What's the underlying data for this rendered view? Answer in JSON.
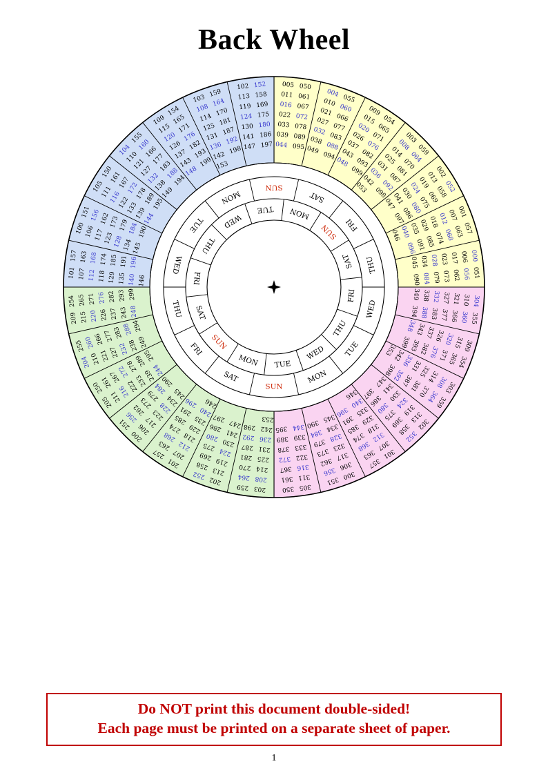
{
  "page": {
    "title": "Back Wheel",
    "page_number": "1",
    "warning": {
      "line1": "Do NOT print this document double-sided!",
      "line2": "Each page must be printed on a separate sheet of paper."
    }
  },
  "colors": {
    "century0_fill": "#ffffc9",
    "century1_fill": "#cfdef6",
    "century2_fill": "#daf2cd",
    "century3_fill": "#fad4f1",
    "leap_year_text": "#3333cc",
    "common_year_text": "#000000",
    "sunday_text": "#cc2200",
    "day_text": "#000000",
    "warning_text": "#c00000",
    "warning_border": "#c00000"
  },
  "wheel": {
    "center_marker_icon": "four-pointed-star",
    "day_ring_outer_clockwise_from_top": [
      "SUN",
      "SAT",
      "FRI",
      "THU",
      "WED",
      "TUE",
      "MON",
      "SUN",
      "SAT",
      "FRI",
      "THU",
      "WED",
      "TUE",
      "MON"
    ],
    "day_ring_inner_clockwise": [
      "SUN",
      "SAT",
      "FRI",
      "THU",
      "WED",
      "TUE",
      "MON",
      "SUN",
      "SAT",
      "FRI",
      "THU",
      "WED",
      "TUE",
      "MON"
    ],
    "day_ring_inner_offset_deg": 45,
    "sectors_clockwise_from_top": [
      {
        "century": 0,
        "col1": [
          "005",
          "011",
          "016",
          "022",
          "033",
          "039",
          "044"
        ],
        "col2": [
          "050",
          "061",
          "067",
          "072",
          "078",
          "089",
          "095"
        ]
      },
      {
        "century": 0,
        "col1": [
          "004",
          "010",
          "021",
          "027",
          "032",
          "038",
          "049"
        ],
        "col2": [
          "055",
          "060",
          "066",
          "077",
          "083",
          "088",
          "094"
        ]
      },
      {
        "century": 0,
        "col1": [
          "009",
          "015",
          "020",
          "026",
          "037",
          "043",
          "048"
        ],
        "col2": [
          "054",
          "065",
          "071",
          "076",
          "082",
          "093",
          "099"
        ]
      },
      {
        "century": 0,
        "col1": [
          "003",
          "008",
          "014",
          "025",
          "031",
          "036",
          "042",
          "053"
        ],
        "col2": [
          "059",
          "064",
          "070",
          "081",
          "087",
          "092",
          "098"
        ]
      },
      {
        "century": 0,
        "col1": [
          "002",
          "013",
          "019",
          "024",
          "030",
          "041",
          "047"
        ],
        "col2": [
          "052",
          "058",
          "069",
          "075",
          "080",
          "086",
          "097"
        ]
      },
      {
        "century": 0,
        "col1": [
          "001",
          "007",
          "012",
          "018",
          "029",
          "035",
          "040",
          "046"
        ],
        "col2": [
          "057",
          "063",
          "068",
          "074",
          "085",
          "091",
          "096"
        ]
      },
      {
        "century": 0,
        "col1": [
          "000",
          "006",
          "017",
          "023",
          "028",
          "034",
          "045"
        ],
        "col2": [
          "051",
          "056",
          "062",
          "073",
          "079",
          "084",
          "090"
        ]
      },
      {
        "century": 3,
        "col1": [
          "304",
          "310",
          "321",
          "327",
          "332",
          "338",
          "349"
        ],
        "col2": [
          "355",
          "360",
          "366",
          "377",
          "383",
          "388",
          "394"
        ]
      },
      {
        "century": 3,
        "col1": [
          "309",
          "315",
          "320",
          "326",
          "337",
          "343",
          "348"
        ],
        "col2": [
          "354",
          "365",
          "371",
          "376",
          "382",
          "393",
          "399"
        ]
      },
      {
        "century": 3,
        "col1": [
          "303",
          "308",
          "314",
          "325",
          "331",
          "336",
          "342",
          "353"
        ],
        "col2": [
          "359",
          "364",
          "370",
          "381",
          "387",
          "392",
          "398"
        ]
      },
      {
        "century": 3,
        "col1": [
          "302",
          "313",
          "319",
          "324",
          "330",
          "341",
          "347"
        ],
        "col2": [
          "352",
          "358",
          "369",
          "375",
          "380",
          "386",
          "397"
        ]
      },
      {
        "century": 3,
        "col1": [
          "301",
          "307",
          "312",
          "318",
          "329",
          "335",
          "340",
          "346"
        ],
        "col2": [
          "357",
          "363",
          "368",
          "374",
          "385",
          "391",
          "396"
        ]
      },
      {
        "century": 3,
        "col1": [
          "300",
          "306",
          "317",
          "323",
          "328",
          "334",
          "345"
        ],
        "col2": [
          "351",
          "356",
          "362",
          "373",
          "379",
          "384",
          "390"
        ]
      },
      {
        "century": 3,
        "col1": [
          "305",
          "311",
          "316",
          "322",
          "333",
          "339",
          "344"
        ],
        "col2": [
          "350",
          "361",
          "367",
          "372",
          "378",
          "389",
          "395"
        ]
      },
      {
        "century": 2,
        "col1": [
          "203",
          "208",
          "214",
          "225",
          "231",
          "236",
          "242",
          "253"
        ],
        "col2": [
          "259",
          "264",
          "270",
          "281",
          "287",
          "292",
          "298"
        ]
      },
      {
        "century": 2,
        "col1": [
          "202",
          "213",
          "219",
          "224",
          "230",
          "241",
          "247"
        ],
        "col2": [
          "252",
          "258",
          "269",
          "275",
          "280",
          "286",
          "297"
        ]
      },
      {
        "century": 2,
        "col1": [
          "201",
          "207",
          "212",
          "218",
          "229",
          "235",
          "240",
          "246"
        ],
        "col2": [
          "257",
          "263",
          "268",
          "274",
          "285",
          "291",
          "296"
        ]
      },
      {
        "century": 2,
        "col1": [
          "200",
          "206",
          "217",
          "223",
          "228",
          "234",
          "245"
        ],
        "col2": [
          "251",
          "256",
          "262",
          "273",
          "279",
          "284",
          "290"
        ]
      },
      {
        "century": 2,
        "col1": [
          "205",
          "211",
          "216",
          "222",
          "233",
          "239",
          "244"
        ],
        "col2": [
          "250",
          "261",
          "267",
          "272",
          "278",
          "289",
          "295"
        ]
      },
      {
        "century": 2,
        "col1": [
          "204",
          "210",
          "221",
          "227",
          "232",
          "238",
          "249"
        ],
        "col2": [
          "255",
          "260",
          "266",
          "277",
          "283",
          "288",
          "294"
        ]
      },
      {
        "century": 2,
        "col1": [
          "209",
          "215",
          "220",
          "226",
          "237",
          "243",
          "248"
        ],
        "col2": [
          "254",
          "265",
          "271",
          "276",
          "282",
          "293",
          "299"
        ]
      },
      {
        "century": 1,
        "col1": [
          "101",
          "107",
          "112",
          "118",
          "129",
          "135",
          "140",
          "146"
        ],
        "col2": [
          "157",
          "163",
          "168",
          "174",
          "185",
          "191",
          "196"
        ]
      },
      {
        "century": 1,
        "col1": [
          "100",
          "106",
          "117",
          "123",
          "128",
          "134",
          "145"
        ],
        "col2": [
          "151",
          "156",
          "162",
          "173",
          "179",
          "184",
          "190"
        ]
      },
      {
        "century": 1,
        "col1": [
          "105",
          "111",
          "116",
          "122",
          "133",
          "139",
          "144"
        ],
        "col2": [
          "150",
          "161",
          "167",
          "172",
          "178",
          "189",
          "195"
        ]
      },
      {
        "century": 1,
        "col1": [
          "104",
          "110",
          "121",
          "127",
          "132",
          "138",
          "149"
        ],
        "col2": [
          "155",
          "160",
          "166",
          "177",
          "183",
          "188",
          "194"
        ]
      },
      {
        "century": 1,
        "col1": [
          "109",
          "115",
          "120",
          "126",
          "137",
          "143",
          "148"
        ],
        "col2": [
          "154",
          "165",
          "171",
          "176",
          "182",
          "193",
          "199"
        ]
      },
      {
        "century": 1,
        "col1": [
          "103",
          "108",
          "114",
          "125",
          "131",
          "136",
          "142",
          "153"
        ],
        "col2": [
          "159",
          "164",
          "170",
          "181",
          "187",
          "192",
          "198"
        ]
      },
      {
        "century": 1,
        "col1": [
          "102",
          "113",
          "119",
          "124",
          "130",
          "141",
          "147"
        ],
        "col2": [
          "152",
          "158",
          "169",
          "175",
          "180",
          "186",
          "197"
        ]
      }
    ]
  }
}
